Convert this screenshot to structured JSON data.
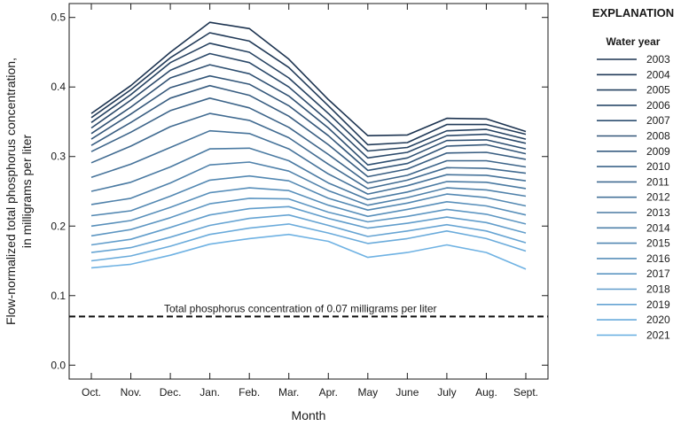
{
  "chart_data": {
    "type": "line",
    "xlabel": "Month",
    "ylabel_line1": "Flow-normalized total phosphorus concentration,",
    "ylabel_line2": "in milligrams per liter",
    "categories": [
      "Oct.",
      "Nov.",
      "Dec.",
      "Jan.",
      "Feb.",
      "Mar.",
      "Apr.",
      "May",
      "June",
      "July",
      "Aug.",
      "Sept."
    ],
    "ylim": [
      -0.02,
      0.52
    ],
    "yticks": [
      0.0,
      0.1,
      0.2,
      0.3,
      0.4,
      0.5
    ],
    "ytick_labels": [
      "0.0",
      "0.1",
      "0.2",
      "0.3",
      "0.4",
      "0.5"
    ],
    "grid": false,
    "legend": {
      "title": "EXPLANATION",
      "subtitle": "Water year",
      "placement": "right"
    },
    "reference_line": {
      "value": 0.07,
      "label": "Total phosphorus concentration of 0.07 milligrams per liter",
      "style": "dashed"
    },
    "colors": {
      "darkest": "#1c3350",
      "lightest": "#6fb2e3",
      "reference": "#111111"
    },
    "series": [
      {
        "name": "2003",
        "values": [
          0.362,
          0.402,
          0.45,
          0.493,
          0.484,
          0.44,
          0.382,
          0.33,
          0.331,
          0.355,
          0.354,
          0.336
        ]
      },
      {
        "name": "2004",
        "values": [
          0.356,
          0.396,
          0.442,
          0.478,
          0.466,
          0.428,
          0.373,
          0.317,
          0.32,
          0.346,
          0.346,
          0.332
        ]
      },
      {
        "name": "2005",
        "values": [
          0.349,
          0.389,
          0.435,
          0.463,
          0.45,
          0.413,
          0.362,
          0.308,
          0.313,
          0.337,
          0.339,
          0.325
        ]
      },
      {
        "name": "2006",
        "values": [
          0.341,
          0.381,
          0.424,
          0.448,
          0.435,
          0.4,
          0.351,
          0.298,
          0.306,
          0.33,
          0.332,
          0.319
        ]
      },
      {
        "name": "2007",
        "values": [
          0.333,
          0.371,
          0.413,
          0.432,
          0.419,
          0.387,
          0.341,
          0.288,
          0.298,
          0.323,
          0.324,
          0.311
        ]
      },
      {
        "name": "2008",
        "values": [
          0.325,
          0.361,
          0.399,
          0.416,
          0.404,
          0.373,
          0.33,
          0.28,
          0.29,
          0.315,
          0.317,
          0.304
        ]
      },
      {
        "name": "2009",
        "values": [
          0.316,
          0.349,
          0.384,
          0.402,
          0.388,
          0.358,
          0.317,
          0.271,
          0.282,
          0.305,
          0.306,
          0.296
        ]
      },
      {
        "name": "2010",
        "values": [
          0.307,
          0.335,
          0.366,
          0.384,
          0.37,
          0.342,
          0.303,
          0.262,
          0.273,
          0.294,
          0.294,
          0.285
        ]
      },
      {
        "name": "2011",
        "values": [
          0.291,
          0.315,
          0.343,
          0.362,
          0.352,
          0.327,
          0.289,
          0.254,
          0.266,
          0.284,
          0.283,
          0.276
        ]
      },
      {
        "name": "2012",
        "values": [
          0.27,
          0.289,
          0.313,
          0.337,
          0.333,
          0.311,
          0.275,
          0.246,
          0.258,
          0.274,
          0.273,
          0.265
        ]
      },
      {
        "name": "2013",
        "values": [
          0.25,
          0.263,
          0.285,
          0.311,
          0.312,
          0.294,
          0.262,
          0.238,
          0.249,
          0.264,
          0.263,
          0.254
        ]
      },
      {
        "name": "2014",
        "values": [
          0.231,
          0.24,
          0.262,
          0.288,
          0.292,
          0.279,
          0.251,
          0.23,
          0.241,
          0.255,
          0.252,
          0.243
        ]
      },
      {
        "name": "2015",
        "values": [
          0.215,
          0.222,
          0.243,
          0.266,
          0.272,
          0.265,
          0.24,
          0.223,
          0.233,
          0.246,
          0.241,
          0.229
        ]
      },
      {
        "name": "2016",
        "values": [
          0.2,
          0.208,
          0.227,
          0.248,
          0.255,
          0.251,
          0.23,
          0.214,
          0.224,
          0.235,
          0.229,
          0.216
        ]
      },
      {
        "name": "2017",
        "values": [
          0.186,
          0.195,
          0.212,
          0.232,
          0.24,
          0.239,
          0.22,
          0.206,
          0.214,
          0.224,
          0.217,
          0.203
        ]
      },
      {
        "name": "2018",
        "values": [
          0.173,
          0.181,
          0.198,
          0.216,
          0.225,
          0.228,
          0.211,
          0.197,
          0.204,
          0.213,
          0.205,
          0.19
        ]
      },
      {
        "name": "2019",
        "values": [
          0.162,
          0.169,
          0.184,
          0.201,
          0.211,
          0.216,
          0.201,
          0.185,
          0.193,
          0.202,
          0.193,
          0.176
        ]
      },
      {
        "name": "2020",
        "values": [
          0.15,
          0.157,
          0.171,
          0.188,
          0.197,
          0.203,
          0.19,
          0.175,
          0.182,
          0.193,
          0.182,
          0.164
        ]
      },
      {
        "name": "2021",
        "values": [
          0.14,
          0.145,
          0.158,
          0.174,
          0.182,
          0.188,
          0.178,
          0.155,
          0.162,
          0.173,
          0.162,
          0.138
        ]
      }
    ]
  }
}
